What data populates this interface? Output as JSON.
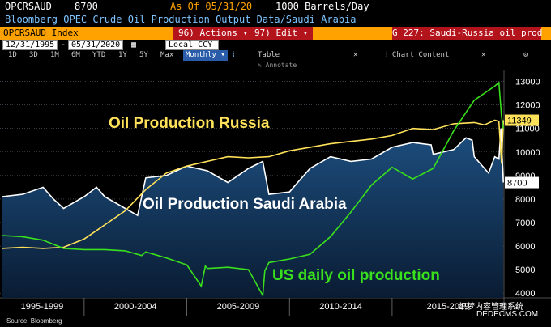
{
  "header": {
    "ticker": "OPCRSAUD",
    "last_value": "8700",
    "as_of": "As Of 05/31/20",
    "units": "1000 Barrels/Day",
    "description": "Bloomberg OPEC Crude Oil Production Output Data/Saudi Arabia"
  },
  "toolbar": {
    "index_label": "OPCRSAUD Index",
    "actions": "96) Actions",
    "edit": "97) Edit",
    "graph_title": "G 227: Saudi-Russia oil prod"
  },
  "controls": {
    "start_date": "12/31/1995",
    "end_date": "05/31/2020",
    "currency": "Local CCY",
    "periods": [
      "1D",
      "3D",
      "1M",
      "6M",
      "YTD",
      "1Y",
      "5Y",
      "Max"
    ],
    "frequency": "Monthly",
    "table": "Table",
    "chart_content": "Chart Content",
    "annotate": "Annotate"
  },
  "colors": {
    "russia": "#ffe25a",
    "saudi": "#ffffff",
    "us": "#39e01c",
    "area_top": "#1d4f80",
    "area_bottom": "#0a1c33",
    "grid": "#5a6470",
    "header_bar": "#ffa200"
  },
  "icons": {
    "dropdown": "chevron-down-icon",
    "menu": "pointer-left-icon",
    "gear": "gear-icon",
    "line_chart": "line-chart-icon"
  },
  "footer": {
    "source": "Source: Bloomberg",
    "watermark": "织梦内容管理系统",
    "watermark_url": "DEDECMS.COM"
  },
  "chart_data": {
    "type": "line",
    "title": "",
    "xlabel": "",
    "ylabel": "",
    "ylim": [
      3800,
      13500
    ],
    "yticks": [
      4000,
      5000,
      6000,
      7000,
      8000,
      9000,
      10000,
      11000,
      12000,
      13000
    ],
    "x_periods": [
      "1995-1999",
      "2000-2004",
      "2005-2009",
      "2010-2014",
      "2015-2019"
    ],
    "xlim": [
      1995.9,
      2020.45
    ],
    "last_value_labels": [
      {
        "series": "Oil Production Russia",
        "value": "11349"
      },
      {
        "series": "Oil Production Saudi Arabia",
        "value": "8700"
      }
    ],
    "series": [
      {
        "name": "Oil Production Russia",
        "style": "line",
        "x": [
          1996,
          1997,
          1998,
          1999,
          2000,
          2001,
          2002,
          2003,
          2004,
          2005,
          2006,
          2007,
          2008,
          2009,
          2010,
          2011,
          2012,
          2013,
          2014,
          2015,
          2016,
          2017,
          2018,
          2019,
          2019.5,
          2020,
          2020.2,
          2020.33,
          2020.42
        ],
        "y": [
          5900,
          5950,
          5900,
          5950,
          6300,
          6900,
          7500,
          8400,
          9100,
          9400,
          9600,
          9800,
          9750,
          9800,
          10050,
          10200,
          10350,
          10450,
          10550,
          10700,
          11000,
          10950,
          11200,
          11250,
          11150,
          11350,
          11300,
          9500,
          11349
        ]
      },
      {
        "name": "Oil Production Saudi Arabia",
        "style": "area",
        "x": [
          1996,
          1997,
          1998,
          1998.5,
          1999,
          2000,
          2000.6,
          2001,
          2002,
          2002.6,
          2003,
          2004,
          2005,
          2006,
          2007,
          2008,
          2008.7,
          2009,
          2010,
          2011,
          2012,
          2013,
          2014,
          2015,
          2016,
          2016.9,
          2017,
          2018,
          2018.6,
          2018.9,
          2019,
          2019.7,
          2020,
          2020.2,
          2020.3,
          2020.42
        ],
        "y": [
          8100,
          8200,
          8500,
          8000,
          7600,
          8100,
          8500,
          8100,
          7600,
          7300,
          8900,
          9000,
          9400,
          9200,
          8700,
          9300,
          9600,
          8200,
          8300,
          9300,
          9800,
          9600,
          9700,
          10200,
          10400,
          10300,
          9900,
          10100,
          10600,
          10500,
          9800,
          9100,
          9800,
          9700,
          11000,
          8700
        ]
      },
      {
        "name": "US daily oil production",
        "style": "line",
        "x": [
          1996,
          1997,
          1998,
          1999,
          2000,
          2001,
          2002,
          2002.8,
          2003,
          2004,
          2005,
          2005.7,
          2005.9,
          2006,
          2007,
          2008,
          2008.7,
          2008.8,
          2009,
          2010,
          2011,
          2012,
          2013,
          2014,
          2015,
          2016,
          2017,
          2018,
          2019,
          2020,
          2020.2,
          2020.33,
          2020.42
        ],
        "y": [
          6450,
          6400,
          6250,
          5900,
          5850,
          5850,
          5800,
          5600,
          5750,
          5500,
          5200,
          4300,
          5150,
          5050,
          5100,
          5000,
          3900,
          4950,
          5300,
          5450,
          5650,
          6400,
          7450,
          8600,
          9350,
          8850,
          9300,
          10900,
          12200,
          12800,
          12950,
          11500,
          11000
        ]
      }
    ],
    "annotations": [
      "Oil Production Russia",
      "Oil Production Saudi Arabia",
      "US daily oil production"
    ]
  }
}
